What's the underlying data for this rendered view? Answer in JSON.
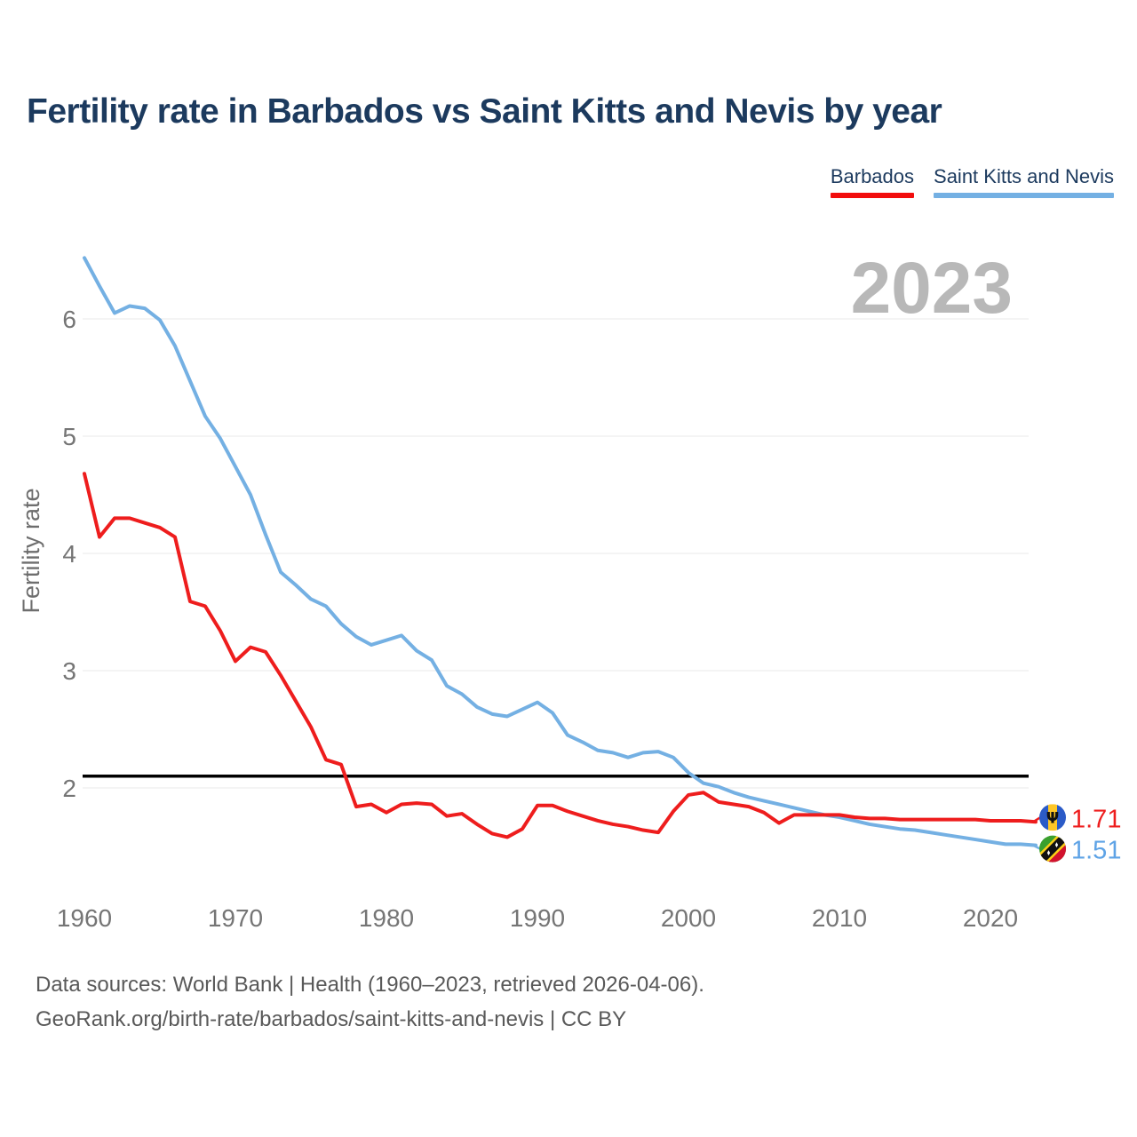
{
  "title": "Fertility rate in Barbados vs Saint Kitts and Nevis by year",
  "watermark_year": "2023",
  "legend": {
    "items": [
      {
        "label": "Barbados",
        "color": "#f20d0d"
      },
      {
        "label": "Saint Kitts and Nevis",
        "color": "#74b0e3"
      }
    ]
  },
  "source": {
    "line1": "Data sources: World Bank | Health (1960–2023, retrieved 2026-04-06).",
    "line2": "GeoRank.org/birth-rate/barbados/saint-kitts-and-nevis | CC BY"
  },
  "chart_data": {
    "type": "line",
    "title": "Fertility rate in Barbados vs Saint Kitts and Nevis by year",
    "xlabel": "",
    "ylabel": "Fertility rate",
    "xlim": [
      1960,
      2023
    ],
    "ylim": [
      1.2,
      6.7
    ],
    "xticks": [
      1960,
      1970,
      1980,
      1990,
      2000,
      2010,
      2020
    ],
    "yticks": [
      2,
      3,
      4,
      5,
      6
    ],
    "grid": "horizontal",
    "legend_position": "top-right",
    "reference_line": 2.1,
    "x": [
      1960,
      1961,
      1962,
      1963,
      1964,
      1965,
      1966,
      1967,
      1968,
      1969,
      1970,
      1971,
      1972,
      1973,
      1974,
      1975,
      1976,
      1977,
      1978,
      1979,
      1980,
      1981,
      1982,
      1983,
      1984,
      1985,
      1986,
      1987,
      1988,
      1989,
      1990,
      1991,
      1992,
      1993,
      1994,
      1995,
      1996,
      1997,
      1998,
      1999,
      2000,
      2001,
      2002,
      2003,
      2004,
      2005,
      2006,
      2007,
      2008,
      2009,
      2010,
      2011,
      2012,
      2013,
      2014,
      2015,
      2016,
      2017,
      2018,
      2019,
      2020,
      2021,
      2022,
      2023
    ],
    "series": [
      {
        "name": "Barbados",
        "color": "#ee1d1d",
        "values": [
          4.68,
          4.14,
          4.3,
          4.3,
          4.26,
          4.22,
          4.14,
          3.59,
          3.55,
          3.34,
          3.08,
          3.2,
          3.16,
          2.96,
          2.74,
          2.52,
          2.24,
          2.2,
          1.84,
          1.86,
          1.79,
          1.86,
          1.87,
          1.86,
          1.76,
          1.78,
          1.69,
          1.61,
          1.58,
          1.65,
          1.85,
          1.85,
          1.8,
          1.76,
          1.72,
          1.69,
          1.67,
          1.64,
          1.62,
          1.8,
          1.94,
          1.96,
          1.88,
          1.86,
          1.84,
          1.79,
          1.7,
          1.77,
          1.77,
          1.77,
          1.77,
          1.75,
          1.74,
          1.74,
          1.73,
          1.73,
          1.73,
          1.73,
          1.73,
          1.73,
          1.72,
          1.72,
          1.72,
          1.71
        ]
      },
      {
        "name": "Saint Kitts and Nevis",
        "color": "#74b0e3",
        "values": [
          6.52,
          6.28,
          6.05,
          6.11,
          6.09,
          5.99,
          5.77,
          5.47,
          5.17,
          4.98,
          4.74,
          4.5,
          4.16,
          3.84,
          3.73,
          3.61,
          3.55,
          3.4,
          3.29,
          3.22,
          3.26,
          3.3,
          3.17,
          3.09,
          2.87,
          2.8,
          2.69,
          2.63,
          2.61,
          2.67,
          2.73,
          2.64,
          2.45,
          2.39,
          2.32,
          2.3,
          2.26,
          2.3,
          2.31,
          2.26,
          2.13,
          2.04,
          2.01,
          1.96,
          1.92,
          1.89,
          1.86,
          1.83,
          1.8,
          1.77,
          1.75,
          1.72,
          1.69,
          1.67,
          1.65,
          1.64,
          1.62,
          1.6,
          1.58,
          1.56,
          1.54,
          1.52,
          1.52,
          1.51
        ]
      }
    ],
    "annotations": {
      "end_labels": [
        "1.71",
        "1.51"
      ],
      "end_label_colors": [
        "#ee1d1d",
        "#5ea3e6"
      ]
    }
  }
}
